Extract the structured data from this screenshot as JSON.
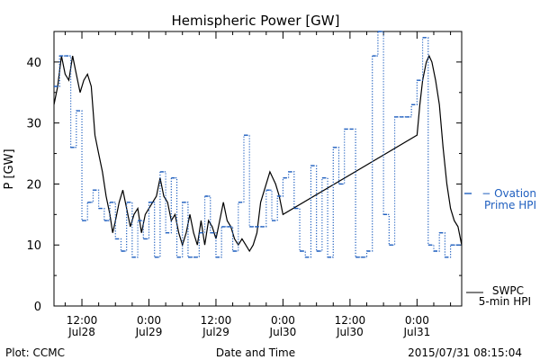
{
  "chart_data": {
    "type": "line",
    "title": "Hemispheric Power [GW]",
    "xlabel": "Date and Time",
    "ylabel": "P [GW]",
    "ylim": [
      0,
      45
    ],
    "yticks": [
      0,
      10,
      20,
      30,
      40
    ],
    "xlim": [
      "2015-07-28T07:00",
      "2015-07-31T08:00"
    ],
    "xticks": [
      {
        "x": "2015-07-28T12:00",
        "line1": "12:00",
        "line2": "Jul28"
      },
      {
        "x": "2015-07-29T00:00",
        "line1": "0:00",
        "line2": "Jul29"
      },
      {
        "x": "2015-07-29T12:00",
        "line1": "12:00",
        "line2": "Jul29"
      },
      {
        "x": "2015-07-30T00:00",
        "line1": "0:00",
        "line2": "Jul30"
      },
      {
        "x": "2015-07-30T12:00",
        "line1": "12:00",
        "line2": "Jul30"
      },
      {
        "x": "2015-07-31T00:00",
        "line1": "0:00",
        "line2": "Jul31"
      }
    ],
    "grid": false,
    "series": [
      {
        "name": "SWPC 5-min HPI",
        "legend_lines": [
          "SWPC",
          "5-min HPI"
        ],
        "color": "#000000",
        "style": "solid",
        "points": [
          [
            "2015-07-28T07:00",
            33
          ],
          [
            "2015-07-28T07:40",
            36
          ],
          [
            "2015-07-28T08:20",
            41
          ],
          [
            "2015-07-28T09:00",
            38
          ],
          [
            "2015-07-28T09:40",
            37
          ],
          [
            "2015-07-28T10:20",
            41
          ],
          [
            "2015-07-28T11:00",
            38
          ],
          [
            "2015-07-28T11:40",
            35
          ],
          [
            "2015-07-28T12:20",
            37
          ],
          [
            "2015-07-28T13:00",
            38
          ],
          [
            "2015-07-28T13:40",
            36
          ],
          [
            "2015-07-28T14:20",
            28
          ],
          [
            "2015-07-28T15:00",
            25
          ],
          [
            "2015-07-28T15:40",
            22
          ],
          [
            "2015-07-28T16:20",
            18
          ],
          [
            "2015-07-28T17:00",
            15
          ],
          [
            "2015-07-28T17:30",
            12
          ],
          [
            "2015-07-28T18:00",
            14
          ],
          [
            "2015-07-28T18:40",
            17
          ],
          [
            "2015-07-28T19:20",
            19
          ],
          [
            "2015-07-28T20:00",
            16
          ],
          [
            "2015-07-28T20:40",
            13
          ],
          [
            "2015-07-28T21:20",
            15
          ],
          [
            "2015-07-28T22:00",
            16
          ],
          [
            "2015-07-28T22:40",
            12
          ],
          [
            "2015-07-28T23:20",
            15
          ],
          [
            "2015-07-29T00:00",
            16
          ],
          [
            "2015-07-29T00:40",
            17
          ],
          [
            "2015-07-29T01:20",
            18
          ],
          [
            "2015-07-29T02:00",
            21
          ],
          [
            "2015-07-29T02:40",
            18
          ],
          [
            "2015-07-29T03:20",
            17
          ],
          [
            "2015-07-29T04:00",
            14
          ],
          [
            "2015-07-29T04:40",
            15
          ],
          [
            "2015-07-29T05:20",
            12
          ],
          [
            "2015-07-29T06:00",
            10
          ],
          [
            "2015-07-29T06:40",
            12
          ],
          [
            "2015-07-29T07:20",
            15
          ],
          [
            "2015-07-29T08:00",
            12
          ],
          [
            "2015-07-29T08:40",
            10
          ],
          [
            "2015-07-29T09:20",
            14
          ],
          [
            "2015-07-29T10:00",
            10
          ],
          [
            "2015-07-29T10:40",
            14
          ],
          [
            "2015-07-29T11:20",
            13
          ],
          [
            "2015-07-29T12:00",
            11
          ],
          [
            "2015-07-29T12:40",
            14
          ],
          [
            "2015-07-29T13:20",
            17
          ],
          [
            "2015-07-29T14:00",
            14
          ],
          [
            "2015-07-29T14:40",
            13
          ],
          [
            "2015-07-29T15:20",
            11
          ],
          [
            "2015-07-29T16:00",
            10
          ],
          [
            "2015-07-29T16:40",
            11
          ],
          [
            "2015-07-29T17:20",
            10
          ],
          [
            "2015-07-29T18:00",
            9
          ],
          [
            "2015-07-29T18:40",
            10
          ],
          [
            "2015-07-29T19:20",
            12
          ],
          [
            "2015-07-29T20:00",
            17
          ],
          [
            "2015-07-29T21:00",
            20
          ],
          [
            "2015-07-29T21:40",
            22
          ],
          [
            "2015-07-29T22:40",
            20
          ],
          [
            "2015-07-29T23:20",
            18
          ],
          [
            "2015-07-30T00:00",
            15
          ],
          [
            "2015-07-31T00:00",
            28
          ],
          [
            "2015-07-31T00:30",
            33
          ],
          [
            "2015-07-31T01:00",
            37
          ],
          [
            "2015-07-31T01:40",
            40
          ],
          [
            "2015-07-31T02:10",
            41
          ],
          [
            "2015-07-31T02:40",
            40
          ],
          [
            "2015-07-31T03:20",
            37
          ],
          [
            "2015-07-31T04:00",
            33
          ],
          [
            "2015-07-31T04:40",
            26
          ],
          [
            "2015-07-31T05:20",
            20
          ],
          [
            "2015-07-31T06:00",
            16
          ],
          [
            "2015-07-31T06:40",
            14
          ],
          [
            "2015-07-31T07:20",
            13
          ],
          [
            "2015-07-31T08:00",
            10
          ]
        ]
      },
      {
        "name": "Ovation Prime HPI",
        "legend_lines": [
          "− Ovation",
          "Prime HPI"
        ],
        "color": "#1f5fbf",
        "style": "dotted-step",
        "points": [
          [
            "2015-07-28T07:00",
            36
          ],
          [
            "2015-07-28T08:00",
            41
          ],
          [
            "2015-07-28T10:00",
            26
          ],
          [
            "2015-07-28T11:00",
            32
          ],
          [
            "2015-07-28T12:00",
            14
          ],
          [
            "2015-07-28T13:00",
            17
          ],
          [
            "2015-07-28T14:00",
            19
          ],
          [
            "2015-07-28T15:00",
            16
          ],
          [
            "2015-07-28T16:00",
            14
          ],
          [
            "2015-07-28T17:00",
            17
          ],
          [
            "2015-07-28T18:00",
            11
          ],
          [
            "2015-07-28T19:00",
            9
          ],
          [
            "2015-07-28T20:00",
            17
          ],
          [
            "2015-07-28T21:00",
            8
          ],
          [
            "2015-07-28T22:00",
            14
          ],
          [
            "2015-07-28T23:00",
            11
          ],
          [
            "2015-07-29T00:00",
            17
          ],
          [
            "2015-07-29T01:00",
            8
          ],
          [
            "2015-07-29T02:00",
            22
          ],
          [
            "2015-07-29T03:00",
            12
          ],
          [
            "2015-07-29T04:00",
            21
          ],
          [
            "2015-07-29T05:00",
            8
          ],
          [
            "2015-07-29T06:00",
            17
          ],
          [
            "2015-07-29T07:00",
            8
          ],
          [
            "2015-07-29T08:00",
            8
          ],
          [
            "2015-07-29T09:00",
            12
          ],
          [
            "2015-07-29T10:00",
            18
          ],
          [
            "2015-07-29T11:00",
            12
          ],
          [
            "2015-07-29T12:00",
            8
          ],
          [
            "2015-07-29T13:00",
            13
          ],
          [
            "2015-07-29T14:00",
            13
          ],
          [
            "2015-07-29T15:00",
            9
          ],
          [
            "2015-07-29T16:00",
            17
          ],
          [
            "2015-07-29T17:00",
            28
          ],
          [
            "2015-07-29T18:00",
            13
          ],
          [
            "2015-07-29T21:00",
            19
          ],
          [
            "2015-07-29T22:00",
            14
          ],
          [
            "2015-07-29T23:00",
            18
          ],
          [
            "2015-07-30T00:00",
            21
          ],
          [
            "2015-07-30T01:00",
            22
          ],
          [
            "2015-07-30T02:00",
            16
          ],
          [
            "2015-07-30T03:00",
            9
          ],
          [
            "2015-07-30T04:00",
            8
          ],
          [
            "2015-07-30T05:00",
            23
          ],
          [
            "2015-07-30T06:00",
            9
          ],
          [
            "2015-07-30T07:00",
            21
          ],
          [
            "2015-07-30T08:00",
            8
          ],
          [
            "2015-07-30T09:00",
            26
          ],
          [
            "2015-07-30T10:00",
            20
          ],
          [
            "2015-07-30T11:00",
            29
          ],
          [
            "2015-07-30T13:00",
            8
          ],
          [
            "2015-07-30T15:00",
            9
          ],
          [
            "2015-07-30T16:00",
            41
          ],
          [
            "2015-07-30T17:00",
            45
          ],
          [
            "2015-07-30T18:00",
            15
          ],
          [
            "2015-07-30T19:00",
            10
          ],
          [
            "2015-07-30T20:00",
            31
          ],
          [
            "2015-07-30T22:00",
            31
          ],
          [
            "2015-07-30T23:00",
            33
          ],
          [
            "2015-07-31T00:00",
            37
          ],
          [
            "2015-07-31T01:00",
            44
          ],
          [
            "2015-07-31T02:00",
            10
          ],
          [
            "2015-07-31T03:00",
            9
          ],
          [
            "2015-07-31T04:00",
            12
          ],
          [
            "2015-07-31T05:00",
            8
          ],
          [
            "2015-07-31T06:00",
            10
          ],
          [
            "2015-07-31T07:00",
            10
          ]
        ]
      }
    ]
  },
  "footer": {
    "plot_credit": "Plot: CCMC",
    "timestamp": "2015/07/31 08:15:04"
  }
}
